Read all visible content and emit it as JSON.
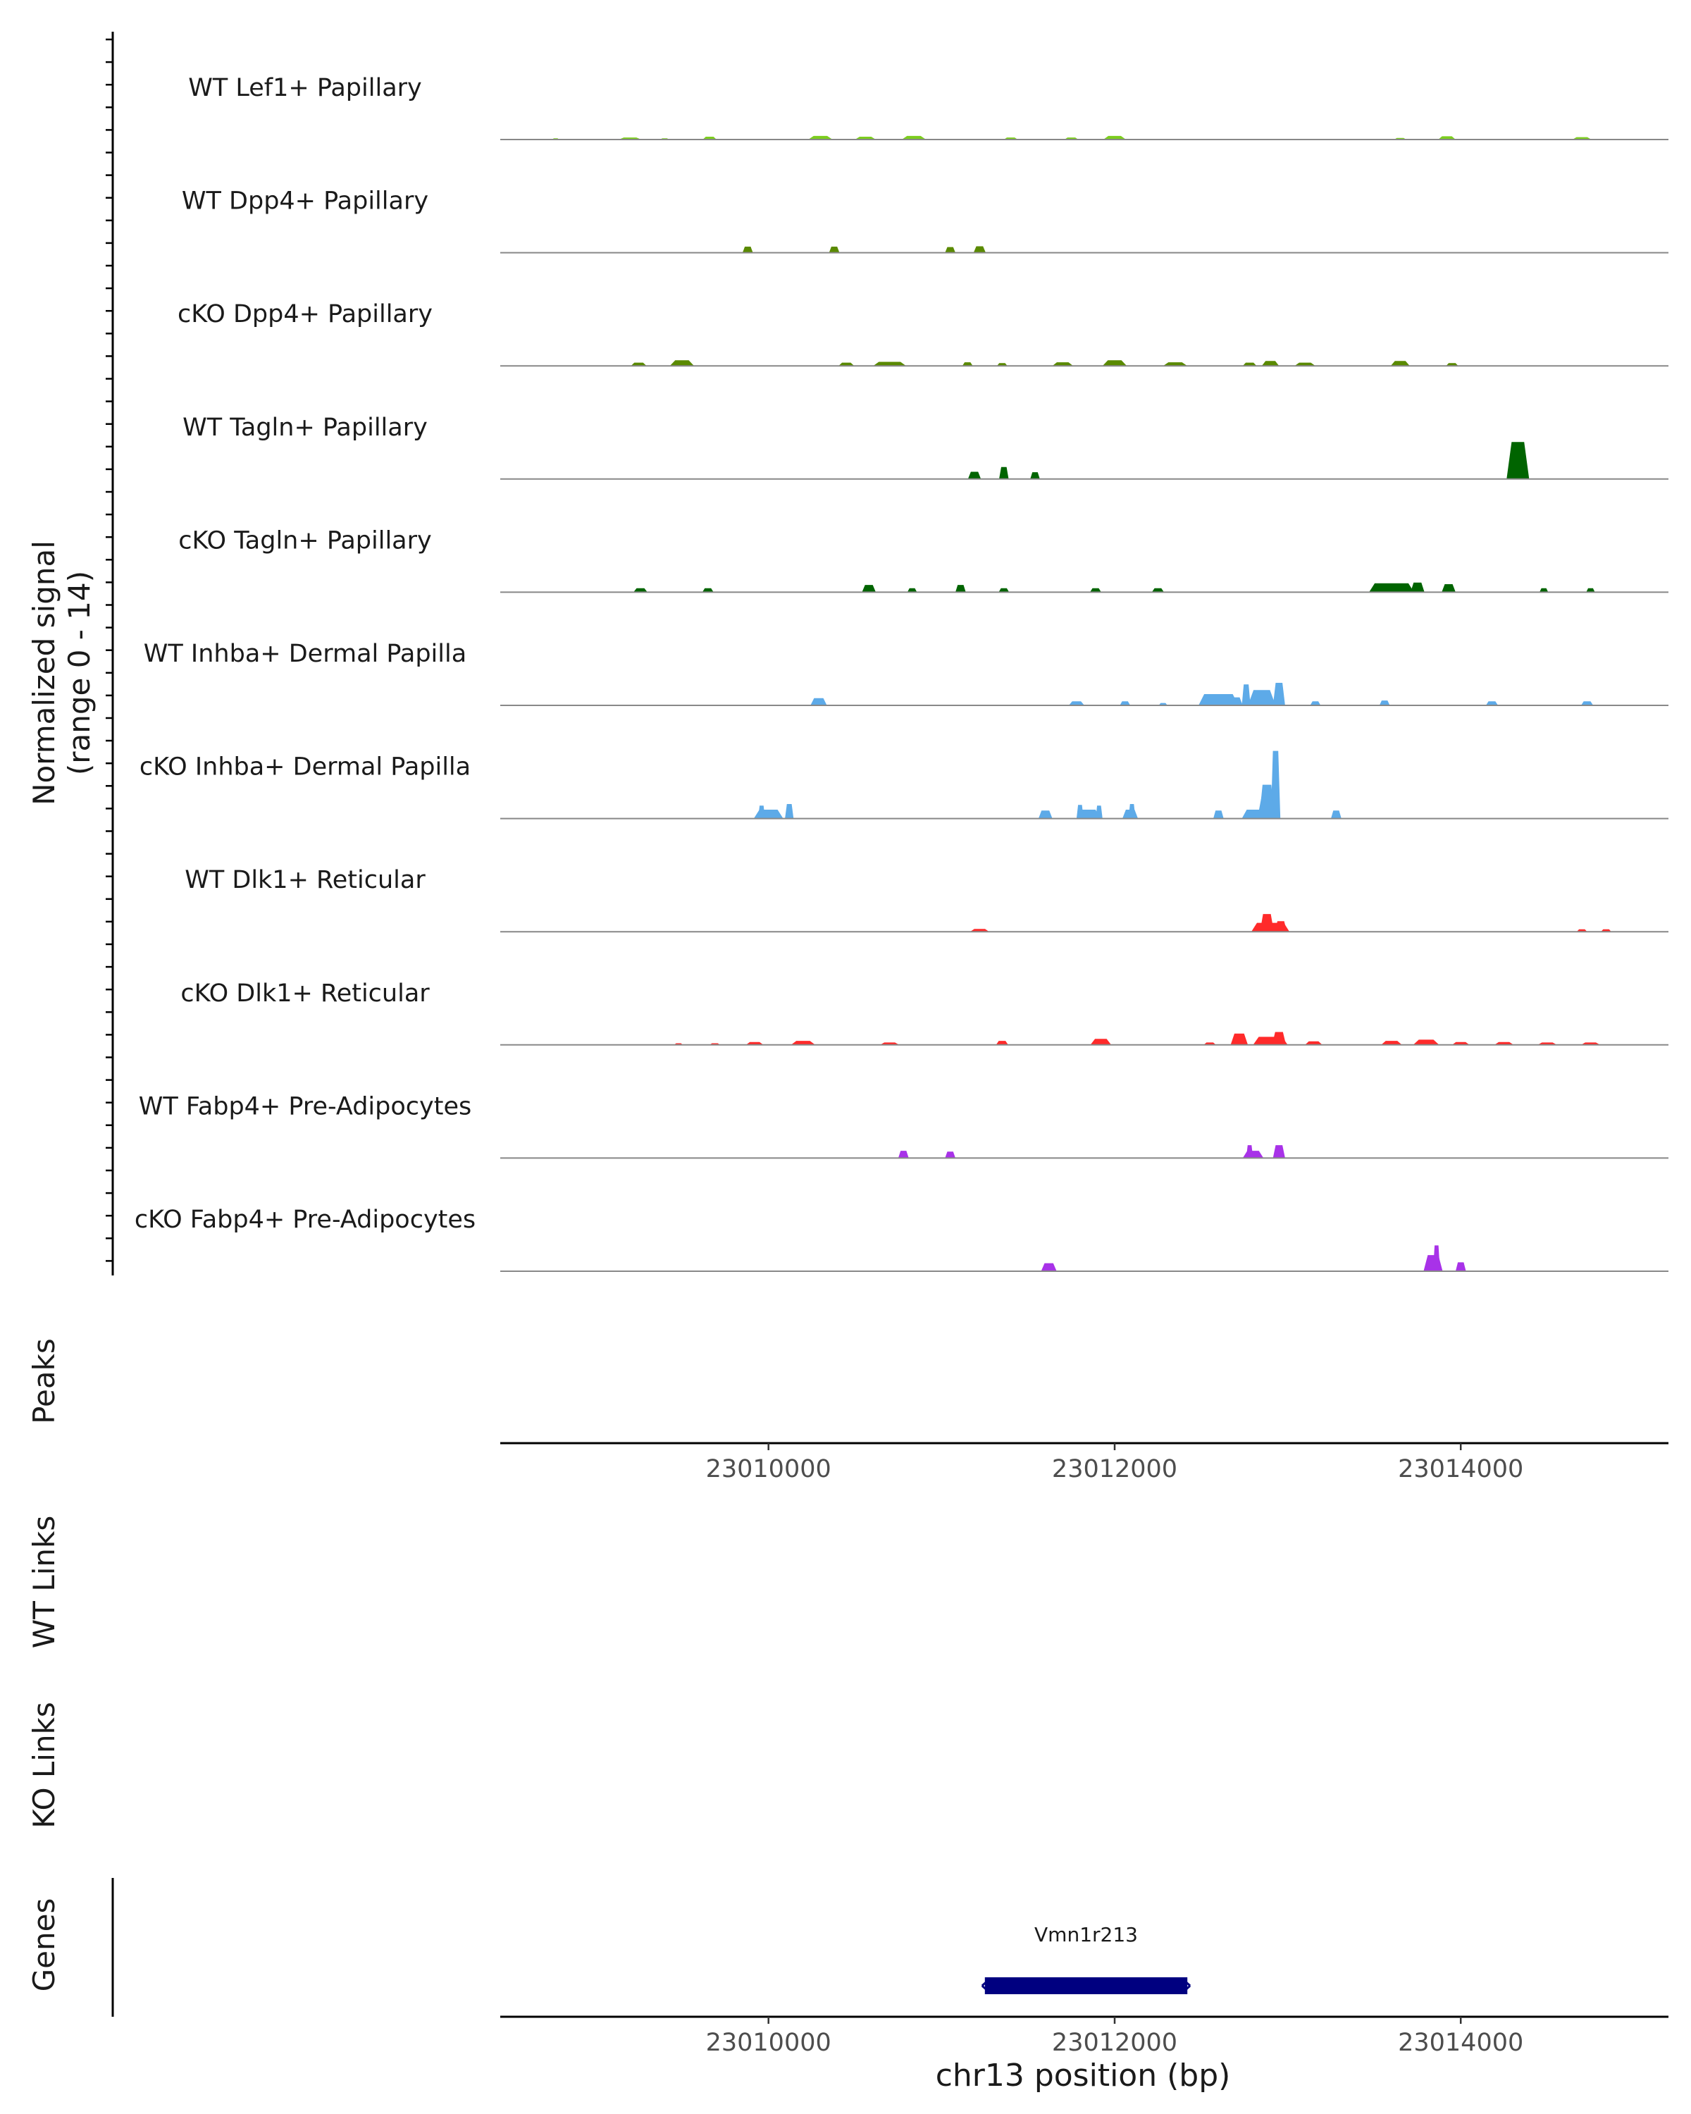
{
  "chart_data": {
    "type": "area",
    "title": "",
    "y_axis_label": "Normalized signal",
    "y_axis_range_label": "(range 0 - 14)",
    "ylim": [
      0,
      14
    ],
    "xlim": [
      23008450,
      23015200
    ],
    "x_label": "chr13 position (bp)",
    "x_ticks": [
      {
        "value": 23010000,
        "label": "23010000"
      },
      {
        "value": 23012000,
        "label": "23012000"
      },
      {
        "value": 23014000,
        "label": "23014000"
      }
    ],
    "colors": {
      "lef1": "#7CCD1E",
      "dpp4": "#5A8A00",
      "tagln": "#006400",
      "inhba": "#5DAAE8",
      "dlk1": "#FF2A2A",
      "fabp4": "#A832E8",
      "gene": "#000080"
    },
    "tracks": [
      {
        "name": "WT Lef1+ Papillary",
        "color_key": "lef1",
        "peaks": [
          [
            23008770,
            40,
            0.15
          ],
          [
            23009200,
            130,
            0.25
          ],
          [
            23009400,
            50,
            0.15
          ],
          [
            23009660,
            80,
            0.35
          ],
          [
            23010300,
            140,
            0.45
          ],
          [
            23010560,
            120,
            0.35
          ],
          [
            23010840,
            140,
            0.45
          ],
          [
            23011400,
            80,
            0.25
          ],
          [
            23011750,
            80,
            0.25
          ],
          [
            23012000,
            130,
            0.45
          ],
          [
            23013650,
            70,
            0.2
          ],
          [
            23013920,
            100,
            0.4
          ],
          [
            23014700,
            110,
            0.3
          ]
        ]
      },
      {
        "name": "WT Dpp4+ Papillary",
        "color_key": "dpp4",
        "peaks": [
          [
            23009880,
            60,
            0.75
          ],
          [
            23010380,
            60,
            0.75
          ],
          [
            23011050,
            60,
            0.7
          ],
          [
            23011220,
            70,
            0.8
          ]
        ]
      },
      {
        "name": "cKO Dpp4+ Papillary",
        "color_key": "dpp4",
        "peaks": [
          [
            23009250,
            90,
            0.4
          ],
          [
            23009500,
            140,
            0.7
          ],
          [
            23010450,
            90,
            0.4
          ],
          [
            23010700,
            190,
            0.5
          ],
          [
            23011150,
            60,
            0.45
          ],
          [
            23011350,
            60,
            0.35
          ],
          [
            23011700,
            120,
            0.45
          ],
          [
            23012000,
            140,
            0.7
          ],
          [
            23012350,
            140,
            0.45
          ],
          [
            23012780,
            80,
            0.4
          ],
          [
            23012900,
            100,
            0.6
          ],
          [
            23013100,
            120,
            0.4
          ],
          [
            23013650,
            110,
            0.6
          ],
          [
            23013950,
            70,
            0.35
          ]
        ]
      },
      {
        "name": "WT Tagln+ Papillary",
        "color_key": "tagln",
        "peaks": [
          [
            23011190,
            75,
            0.9
          ],
          [
            23011360,
            55,
            1.5
          ],
          [
            23011540,
            55,
            0.85
          ],
          [
            23014330,
            130,
            4.6
          ]
        ]
      },
      {
        "name": "cKO Tagln+ Papillary",
        "color_key": "tagln",
        "peaks": [
          [
            23009260,
            80,
            0.5
          ],
          [
            23009650,
            65,
            0.5
          ],
          [
            23010580,
            80,
            0.9
          ],
          [
            23010830,
            55,
            0.5
          ],
          [
            23011110,
            60,
            0.9
          ],
          [
            23011360,
            60,
            0.5
          ],
          [
            23011890,
            65,
            0.5
          ],
          [
            23012250,
            70,
            0.5
          ],
          [
            23013600,
            260,
            1.1
          ],
          [
            23013750,
            80,
            1.2
          ],
          [
            23013930,
            80,
            1.0
          ],
          [
            23014480,
            50,
            0.5
          ],
          [
            23014750,
            50,
            0.5
          ]
        ]
      },
      {
        "name": "WT Inhba+ Dermal Papilla",
        "color_key": "inhba",
        "peaks": [
          [
            23010290,
            95,
            0.9
          ],
          [
            23011780,
            90,
            0.5
          ],
          [
            23012060,
            60,
            0.5
          ],
          [
            23012280,
            50,
            0.3
          ],
          [
            23012600,
            230,
            1.4
          ],
          [
            23012700,
            80,
            1.0
          ],
          [
            23012850,
            160,
            1.9
          ],
          [
            23012950,
            70,
            2.8
          ],
          [
            23012760,
            50,
            2.6
          ],
          [
            23013160,
            60,
            0.5
          ],
          [
            23013560,
            60,
            0.6
          ],
          [
            23014180,
            70,
            0.5
          ],
          [
            23014730,
            70,
            0.5
          ]
        ]
      },
      {
        "name": "cKO Inhba+ Dermal Papilla",
        "color_key": "inhba",
        "peaks": [
          [
            23010000,
            170,
            1.1
          ],
          [
            23009960,
            40,
            1.6
          ],
          [
            23010120,
            50,
            1.8
          ],
          [
            23011600,
            80,
            1.0
          ],
          [
            23011850,
            140,
            1.1
          ],
          [
            23011800,
            40,
            1.7
          ],
          [
            23011910,
            40,
            1.6
          ],
          [
            23012090,
            90,
            1.1
          ],
          [
            23012100,
            40,
            1.8
          ],
          [
            23012600,
            60,
            1.0
          ],
          [
            23012800,
            130,
            1.1
          ],
          [
            23012880,
            110,
            2.8
          ],
          [
            23012930,
            55,
            8.4
          ],
          [
            23012880,
            90,
            4.2
          ],
          [
            23013280,
            60,
            1.0
          ]
        ]
      },
      {
        "name": "WT Dlk1+ Reticular",
        "color_key": "dlk1",
        "peaks": [
          [
            23011220,
            110,
            0.35
          ],
          [
            23012900,
            220,
            1.1
          ],
          [
            23012880,
            80,
            2.2
          ],
          [
            23012960,
            70,
            1.3
          ],
          [
            23014700,
            60,
            0.3
          ],
          [
            23014840,
            60,
            0.3
          ]
        ]
      },
      {
        "name": "cKO Dlk1+ Reticular",
        "color_key": "dlk1",
        "peaks": [
          [
            23009480,
            50,
            0.2
          ],
          [
            23009690,
            60,
            0.2
          ],
          [
            23009920,
            100,
            0.35
          ],
          [
            23010200,
            140,
            0.5
          ],
          [
            23010700,
            110,
            0.3
          ],
          [
            23011350,
            70,
            0.5
          ],
          [
            23011920,
            120,
            0.75
          ],
          [
            23012550,
            70,
            0.3
          ],
          [
            23012720,
            100,
            1.4
          ],
          [
            23012900,
            200,
            1.0
          ],
          [
            23012950,
            80,
            1.6
          ],
          [
            23013150,
            100,
            0.45
          ],
          [
            23013600,
            120,
            0.5
          ],
          [
            23013800,
            150,
            0.65
          ],
          [
            23014000,
            100,
            0.35
          ],
          [
            23014250,
            110,
            0.35
          ],
          [
            23014500,
            110,
            0.3
          ],
          [
            23014750,
            110,
            0.3
          ]
        ]
      },
      {
        "name": "WT Fabp4+ Pre-Adipocytes",
        "color_key": "fabp4",
        "peaks": [
          [
            23010780,
            60,
            0.9
          ],
          [
            23011050,
            60,
            0.8
          ],
          [
            23012800,
            120,
            0.9
          ],
          [
            23012780,
            40,
            1.6
          ],
          [
            23012950,
            70,
            1.6
          ]
        ]
      },
      {
        "name": "cKO Fabp4+ Pre-Adipocytes",
        "color_key": "fabp4",
        "peaks": [
          [
            23011620,
            90,
            1.0
          ],
          [
            23013840,
            110,
            2.0
          ],
          [
            23013860,
            40,
            3.2
          ],
          [
            23014000,
            60,
            1.1
          ]
        ]
      }
    ],
    "panels": {
      "peaks": "Peaks",
      "wt_links": "WT Links",
      "ko_links": "KO Links",
      "genes": "Genes"
    },
    "gene": {
      "name": "Vmn1r213",
      "start": 23011250,
      "end": 23012420,
      "strand": "-"
    }
  }
}
